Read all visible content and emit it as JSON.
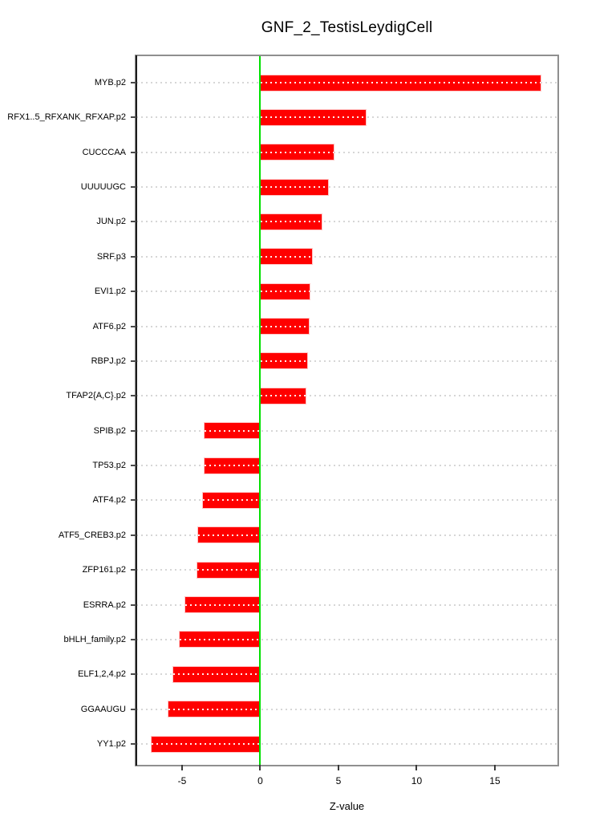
{
  "title": "GNF_2_TestisLeydigCell",
  "chart_data": {
    "type": "bar",
    "orientation": "horizontal",
    "title": "GNF_2_TestisLeydigCell",
    "xlabel": "Z-value",
    "ylabel": "",
    "xlim": [
      -7.92,
      19.0
    ],
    "x_ticks": [
      -5,
      0,
      5,
      10,
      15
    ],
    "grid": "dotted horizontal gridline per category",
    "legend": "none",
    "bar_color": "#ff0000",
    "bar_border_color": "#ffc4c4",
    "zero_line_color": "#00e000",
    "categories": [
      "MYB.p2",
      "RFX1..5_RFXANK_RFXAP.p2",
      "CUCCCAA",
      "UUUUUGC",
      "JUN.p2",
      "SRF.p3",
      "EVI1.p2",
      "ATF6.p2",
      "RBPJ.p2",
      "TFAP2{A,C}.p2",
      "SPIB.p2",
      "TP53.p2",
      "ATF4.p2",
      "ATF5_CREB3.p2",
      "ZFP161.p2",
      "ESRRA.p2",
      "bHLH_family.p2",
      "ELF1,2,4.p2",
      "GGAAUGU",
      "YY1.p2"
    ],
    "values": [
      18.0,
      6.8,
      4.75,
      4.4,
      4.0,
      3.35,
      3.2,
      3.15,
      3.05,
      2.95,
      -3.6,
      -3.6,
      -3.7,
      -4.0,
      -4.05,
      -4.85,
      -5.2,
      -5.6,
      -5.9,
      -7.0
    ]
  }
}
